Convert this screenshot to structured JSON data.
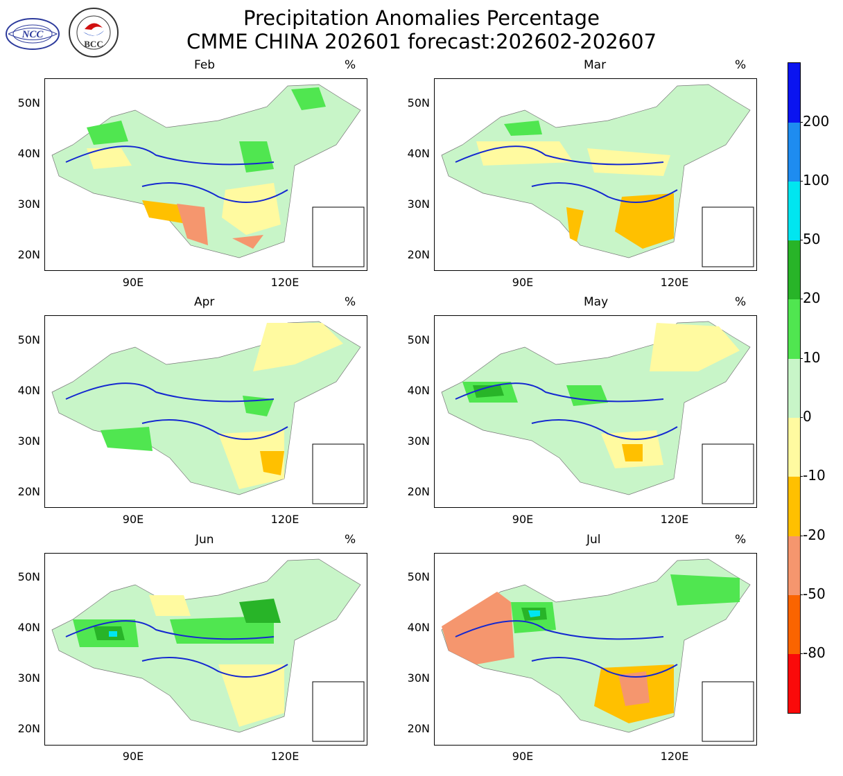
{
  "header": {
    "title_line1": "Precipitation Anomalies Percentage",
    "title_line2": "CMME CHINA 202601 forecast:202602-202607"
  },
  "logos": [
    {
      "name": "ncc-logo",
      "text": "NCC"
    },
    {
      "name": "bcc-logo",
      "text": "BCC"
    }
  ],
  "panels": [
    {
      "month": "Feb",
      "unit": "%"
    },
    {
      "month": "Mar",
      "unit": "%"
    },
    {
      "month": "Apr",
      "unit": "%"
    },
    {
      "month": "May",
      "unit": "%"
    },
    {
      "month": "Jun",
      "unit": "%"
    },
    {
      "month": "Jul",
      "unit": "%"
    }
  ],
  "axes": {
    "lat_labels": [
      "50N",
      "40N",
      "30N",
      "20N"
    ],
    "lon_labels": [
      "90E",
      "120E"
    ]
  },
  "colorbar": {
    "labels": [
      "200",
      "100",
      "50",
      "20",
      "10",
      "0",
      "-10",
      "-20",
      "-50",
      "-80"
    ],
    "colors": [
      "#0a14f0",
      "#1e8cf0",
      "#00e6f0",
      "#28b428",
      "#50e650",
      "#c8f5c8",
      "#fffaa0",
      "#ffc000",
      "#f5966e",
      "#fa6400",
      "#fa0a0a"
    ]
  }
}
